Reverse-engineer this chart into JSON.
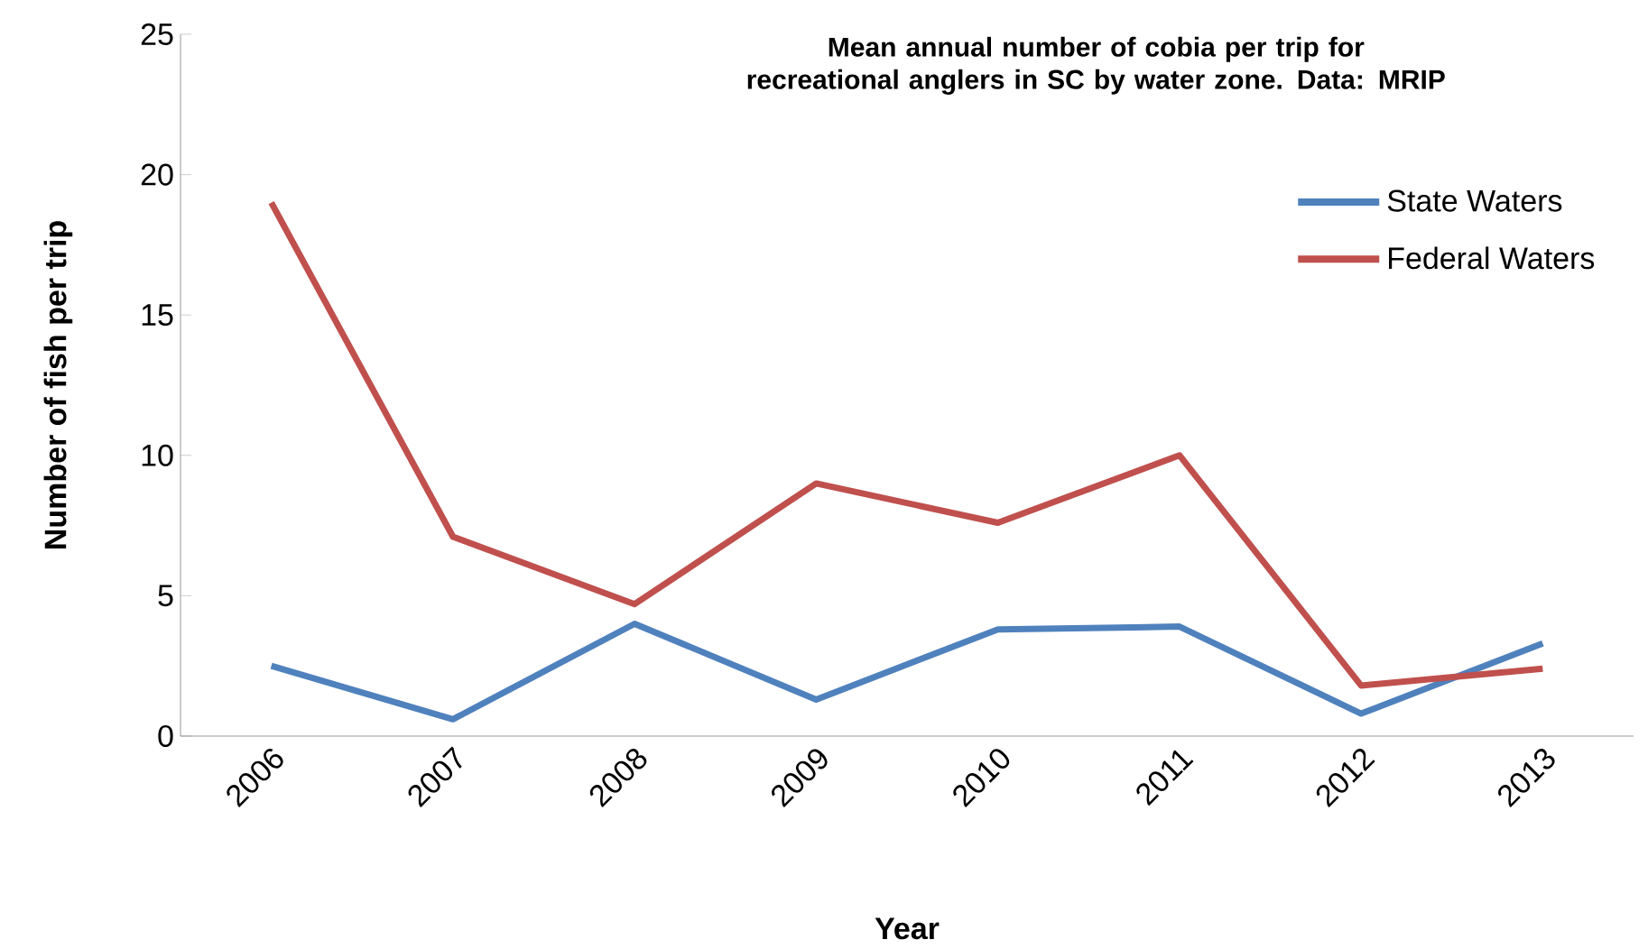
{
  "chart_data": {
    "type": "line",
    "title": "Mean annual number of cobia per trip for recreational anglers in SC by water zone.  Data: MRIP",
    "xlabel": "Year",
    "ylabel": "Number of fish per trip",
    "categories": [
      "2006",
      "2007",
      "2008",
      "2009",
      "2010",
      "2011",
      "2012",
      "2013"
    ],
    "series": [
      {
        "name": "State Waters",
        "color": "#4f81bd",
        "values": [
          2.5,
          0.6,
          4.0,
          1.3,
          3.8,
          3.9,
          0.8,
          3.3
        ]
      },
      {
        "name": "Federal Waters",
        "color": "#c0504d",
        "values": [
          19.0,
          7.1,
          4.7,
          9.0,
          7.6,
          10.0,
          1.8,
          2.4
        ]
      }
    ],
    "ylim": [
      0,
      25
    ],
    "yticks": [
      0,
      5,
      10,
      15,
      20,
      25
    ],
    "grid": false,
    "legend": "right",
    "marker": "none",
    "line_style": "solid"
  }
}
